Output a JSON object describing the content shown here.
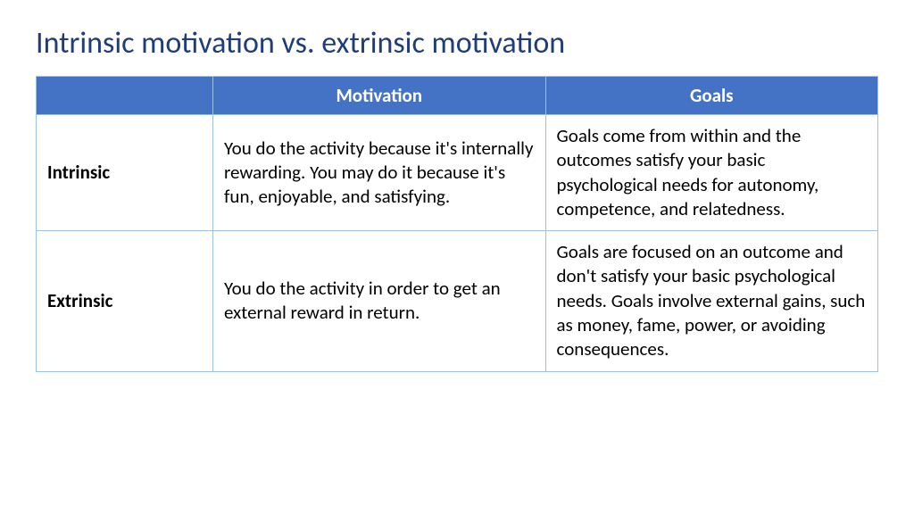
{
  "title": "Intrinsic motivation vs. extrinsic motivation",
  "title_color": "#1f3d78",
  "table": {
    "header_bg": "#4472c4",
    "header_fg": "#ffffff",
    "border_color": "#9cc2e5",
    "cell_fg": "#000000",
    "body_font_size": 21,
    "header_font_size": 21,
    "columns": [
      "",
      "Motivation",
      "Goals"
    ],
    "rows": [
      {
        "label": "Intrinsic",
        "motivation": "You do the activity because it's internally rewarding. You may do it because it's fun, enjoyable, and satisfying.",
        "goals": "Goals come from within and the outcomes satisfy your basic psychological needs for autonomy, competence, and relatedness."
      },
      {
        "label": "Extrinsic",
        "motivation": "You do the activity in order to get an external reward in return.",
        "goals": "Goals are focused on an outcome and don't satisfy your basic psychological needs. Goals involve external gains, such as money, fame, power, or avoiding consequences."
      }
    ]
  }
}
